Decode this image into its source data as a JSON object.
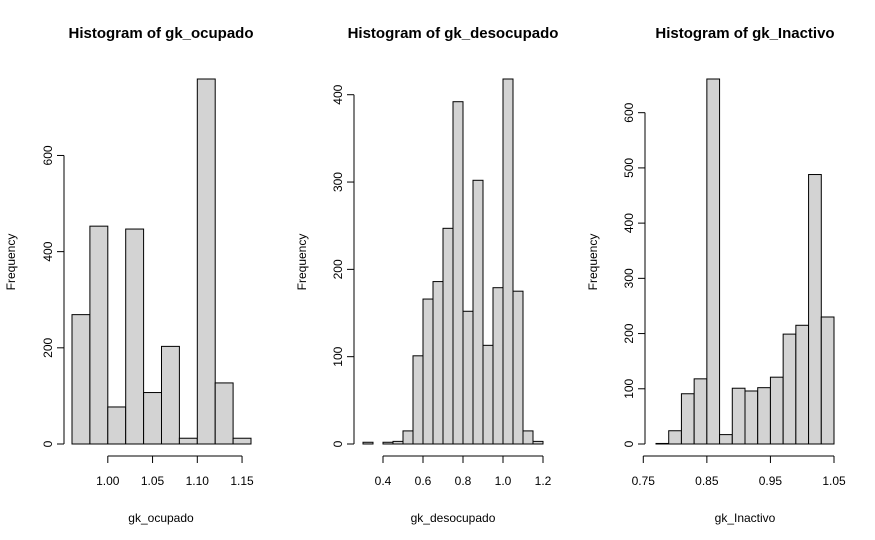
{
  "chart_data": [
    {
      "type": "bar",
      "title": "Histogram of gk_ocupado",
      "xlabel": "gk_ocupado",
      "ylabel": "Frequency",
      "bin_edges": [
        0.96,
        0.98,
        1.0,
        1.02,
        1.04,
        1.06,
        1.08,
        1.1,
        1.12,
        1.14,
        1.16
      ],
      "values": [
        269,
        453,
        77,
        447,
        107,
        203,
        12,
        759,
        127,
        12
      ],
      "xlim": [
        0.96,
        1.16
      ],
      "ylim": [
        0,
        759
      ],
      "x_ticks": [
        1.0,
        1.05,
        1.1,
        1.15
      ],
      "x_tick_labels": [
        "1.00",
        "1.05",
        "1.10",
        "1.15"
      ],
      "y_ticks": [
        0,
        200,
        400,
        600
      ],
      "y_tick_labels": [
        "0",
        "200",
        "400",
        "600"
      ]
    },
    {
      "type": "bar",
      "title": "Histogram of gk_desocupado",
      "xlabel": "gk_desocupado",
      "ylabel": "Frequency",
      "bin_edges": [
        0.3,
        0.35,
        0.4,
        0.45,
        0.5,
        0.55,
        0.6,
        0.65,
        0.7,
        0.75,
        0.8,
        0.85,
        0.9,
        0.95,
        1.0,
        1.05,
        1.1,
        1.15,
        1.2
      ],
      "values": [
        2,
        0,
        2,
        3,
        15,
        101,
        166,
        186,
        247,
        392,
        152,
        302,
        113,
        179,
        418,
        175,
        15,
        3
      ],
      "xlim": [
        0.3,
        1.2
      ],
      "ylim": [
        0,
        418
      ],
      "x_ticks": [
        0.4,
        0.6,
        0.8,
        1.0,
        1.2
      ],
      "x_tick_labels": [
        "0.4",
        "0.6",
        "0.8",
        "1.0",
        "1.2"
      ],
      "y_ticks": [
        0,
        100,
        200,
        300,
        400
      ],
      "y_tick_labels": [
        "0",
        "100",
        "200",
        "300",
        "400"
      ]
    },
    {
      "type": "bar",
      "title": "Histogram of gk_Inactivo",
      "xlabel": "gk_Inactivo",
      "ylabel": "Frequency",
      "bin_edges": [
        0.77,
        0.79,
        0.81,
        0.83,
        0.85,
        0.87,
        0.89,
        0.91,
        0.93,
        0.95,
        0.97,
        0.99,
        1.01,
        1.03,
        1.05
      ],
      "values": [
        1,
        24,
        91,
        118,
        661,
        17,
        101,
        96,
        102,
        121,
        199,
        215,
        488,
        230
      ],
      "xlim": [
        0.77,
        1.05
      ],
      "ylim": [
        0,
        661
      ],
      "x_ticks": [
        0.75,
        0.85,
        0.95,
        1.05
      ],
      "x_tick_labels": [
        "0.75",
        "0.85",
        "0.95",
        "1.05"
      ],
      "y_ticks": [
        0,
        100,
        200,
        300,
        400,
        500,
        600
      ],
      "y_tick_labels": [
        "0",
        "100",
        "200",
        "300",
        "400",
        "500",
        "600"
      ]
    }
  ]
}
